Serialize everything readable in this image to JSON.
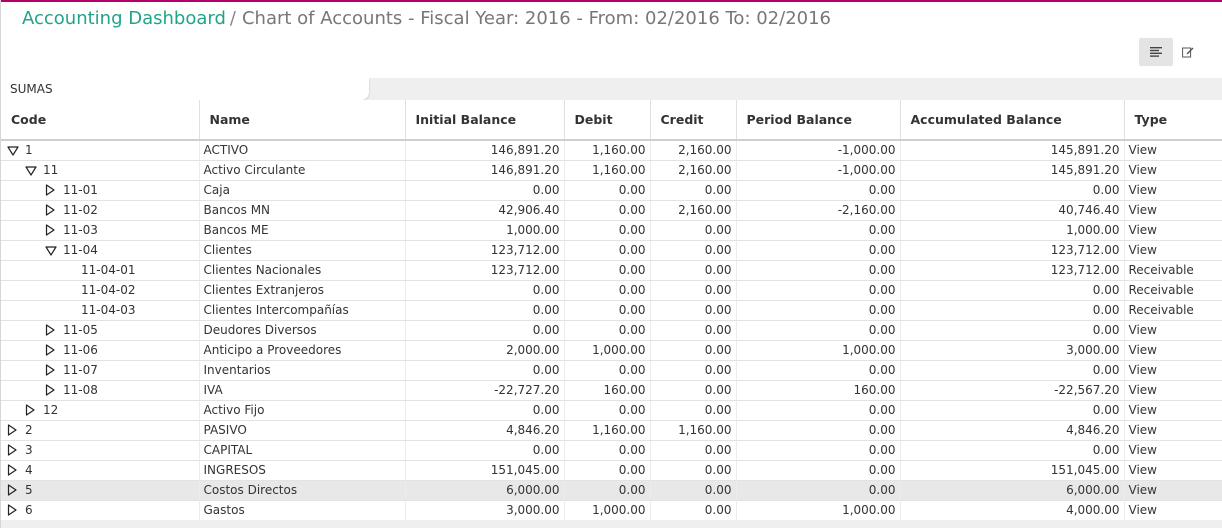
{
  "header": {
    "breadcrumb_link": "Accounting Dashboard",
    "separator": "/",
    "title": "Chart of Accounts - Fiscal Year: 2016 - From: 02/2016 To: 02/2016"
  },
  "view_switch": {
    "list_icon": "list-view-icon",
    "form_icon": "edit-form-icon"
  },
  "group_tag": "SUMAS",
  "columns": [
    "Code",
    "Name",
    "Initial Balance",
    "Debit",
    "Credit",
    "Period Balance",
    "Accumulated Balance",
    "Type"
  ],
  "colors": {
    "accent": "#21a38a",
    "top_border": "#b3006b",
    "selected_row": "#e8e8e8"
  },
  "rows": [
    {
      "code": "1",
      "level": 0,
      "toggle": "expanded",
      "name": "ACTIVO",
      "initial": "146,891.20",
      "debit": "1,160.00",
      "credit": "2,160.00",
      "period": "-1,000.00",
      "accumulated": "145,891.20",
      "type": "View"
    },
    {
      "code": "11",
      "level": 1,
      "toggle": "expanded",
      "name": "Activo Circulante",
      "initial": "146,891.20",
      "debit": "1,160.00",
      "credit": "2,160.00",
      "period": "-1,000.00",
      "accumulated": "145,891.20",
      "type": "View"
    },
    {
      "code": "11-01",
      "level": 2,
      "toggle": "collapsed",
      "name": "Caja",
      "initial": "0.00",
      "debit": "0.00",
      "credit": "0.00",
      "period": "0.00",
      "accumulated": "0.00",
      "type": "View"
    },
    {
      "code": "11-02",
      "level": 2,
      "toggle": "collapsed",
      "name": "Bancos MN",
      "initial": "42,906.40",
      "debit": "0.00",
      "credit": "2,160.00",
      "period": "-2,160.00",
      "accumulated": "40,746.40",
      "type": "View"
    },
    {
      "code": "11-03",
      "level": 2,
      "toggle": "collapsed",
      "name": "Bancos ME",
      "initial": "1,000.00",
      "debit": "0.00",
      "credit": "0.00",
      "period": "0.00",
      "accumulated": "1,000.00",
      "type": "View"
    },
    {
      "code": "11-04",
      "level": 2,
      "toggle": "expanded",
      "name": "Clientes",
      "initial": "123,712.00",
      "debit": "0.00",
      "credit": "0.00",
      "period": "0.00",
      "accumulated": "123,712.00",
      "type": "View"
    },
    {
      "code": "11-04-01",
      "level": 3,
      "toggle": "none",
      "name": "Clientes Nacionales",
      "initial": "123,712.00",
      "debit": "0.00",
      "credit": "0.00",
      "period": "0.00",
      "accumulated": "123,712.00",
      "type": "Receivable"
    },
    {
      "code": "11-04-02",
      "level": 3,
      "toggle": "none",
      "name": "Clientes Extranjeros",
      "initial": "0.00",
      "debit": "0.00",
      "credit": "0.00",
      "period": "0.00",
      "accumulated": "0.00",
      "type": "Receivable"
    },
    {
      "code": "11-04-03",
      "level": 3,
      "toggle": "none",
      "name": "Clientes Intercompañías",
      "initial": "0.00",
      "debit": "0.00",
      "credit": "0.00",
      "period": "0.00",
      "accumulated": "0.00",
      "type": "Receivable"
    },
    {
      "code": "11-05",
      "level": 2,
      "toggle": "collapsed",
      "name": "Deudores Diversos",
      "initial": "0.00",
      "debit": "0.00",
      "credit": "0.00",
      "period": "0.00",
      "accumulated": "0.00",
      "type": "View"
    },
    {
      "code": "11-06",
      "level": 2,
      "toggle": "collapsed",
      "name": "Anticipo a Proveedores",
      "initial": "2,000.00",
      "debit": "1,000.00",
      "credit": "0.00",
      "period": "1,000.00",
      "accumulated": "3,000.00",
      "type": "View"
    },
    {
      "code": "11-07",
      "level": 2,
      "toggle": "collapsed",
      "name": "Inventarios",
      "initial": "0.00",
      "debit": "0.00",
      "credit": "0.00",
      "period": "0.00",
      "accumulated": "0.00",
      "type": "View"
    },
    {
      "code": "11-08",
      "level": 2,
      "toggle": "collapsed",
      "name": "IVA",
      "initial": "-22,727.20",
      "debit": "160.00",
      "credit": "0.00",
      "period": "160.00",
      "accumulated": "-22,567.20",
      "type": "View"
    },
    {
      "code": "12",
      "level": 1,
      "toggle": "collapsed",
      "name": "Activo Fijo",
      "initial": "0.00",
      "debit": "0.00",
      "credit": "0.00",
      "period": "0.00",
      "accumulated": "0.00",
      "type": "View"
    },
    {
      "code": "2",
      "level": 0,
      "toggle": "collapsed",
      "name": "PASIVO",
      "initial": "4,846.20",
      "debit": "1,160.00",
      "credit": "1,160.00",
      "period": "0.00",
      "accumulated": "4,846.20",
      "type": "View"
    },
    {
      "code": "3",
      "level": 0,
      "toggle": "collapsed",
      "name": "CAPITAL",
      "initial": "0.00",
      "debit": "0.00",
      "credit": "0.00",
      "period": "0.00",
      "accumulated": "0.00",
      "type": "View"
    },
    {
      "code": "4",
      "level": 0,
      "toggle": "collapsed",
      "name": "INGRESOS",
      "initial": "151,045.00",
      "debit": "0.00",
      "credit": "0.00",
      "period": "0.00",
      "accumulated": "151,045.00",
      "type": "View"
    },
    {
      "code": "5",
      "level": 0,
      "toggle": "collapsed",
      "name": "Costos Directos",
      "initial": "6,000.00",
      "debit": "0.00",
      "credit": "0.00",
      "period": "0.00",
      "accumulated": "6,000.00",
      "type": "View",
      "selected": true
    },
    {
      "code": "6",
      "level": 0,
      "toggle": "collapsed",
      "name": "Gastos",
      "initial": "3,000.00",
      "debit": "1,000.00",
      "credit": "0.00",
      "period": "1,000.00",
      "accumulated": "4,000.00",
      "type": "View"
    }
  ]
}
